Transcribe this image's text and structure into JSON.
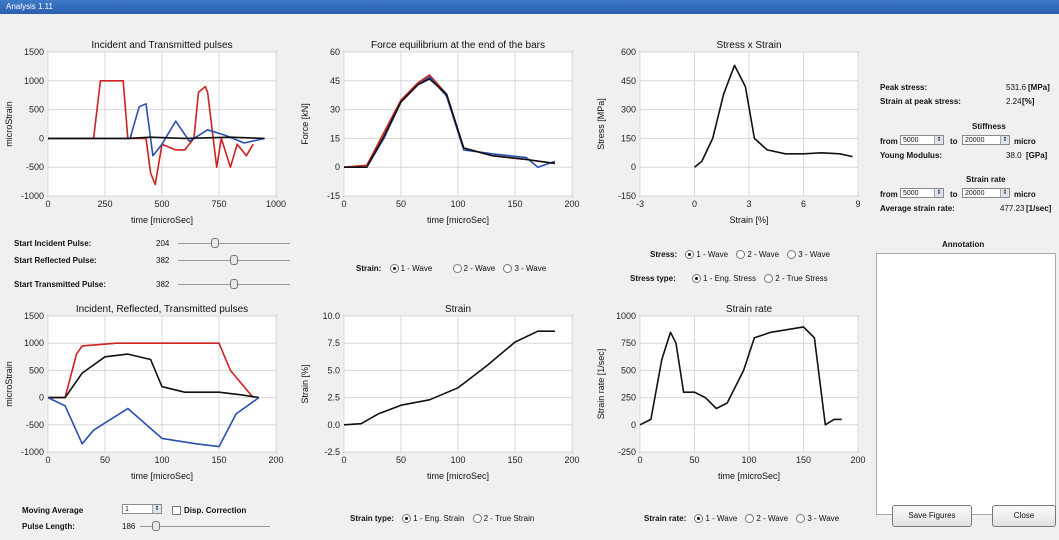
{
  "window": {
    "title": "Analysis 1.11"
  },
  "charts": {
    "incident_transmitted": {
      "title": "Incident and Transmitted pulses",
      "xlabel": "time [microSec]",
      "ylabel": "microStrain",
      "xticks": [
        "0",
        "250",
        "500",
        "750",
        "1000"
      ],
      "yticks": [
        "1500",
        "1000",
        "500",
        "0",
        "-500",
        "-1000"
      ]
    },
    "force": {
      "title": "Force equilibrium at the end of the bars",
      "xlabel": "time [microSec]",
      "ylabel": "Force [kN]",
      "xticks": [
        "0",
        "50",
        "100",
        "150",
        "200"
      ],
      "yticks": [
        "60",
        "45",
        "30",
        "15",
        "0",
        "-15"
      ]
    },
    "stress_strain": {
      "title": "Stress x Strain",
      "xlabel": "Strain [%]",
      "ylabel": "Stress [MPa]",
      "xticks": [
        "-3",
        "0",
        "3",
        "6",
        "9"
      ],
      "yticks": [
        "600",
        "450",
        "300",
        "150",
        "0",
        "-150"
      ]
    },
    "irt": {
      "title": "Incident, Reflected, Transmitted pulses",
      "xlabel": "time [microSec]",
      "ylabel": "microStrain",
      "xticks": [
        "0",
        "50",
        "100",
        "150",
        "200"
      ],
      "yticks": [
        "1500",
        "1000",
        "500",
        "0",
        "-500",
        "-1000"
      ]
    },
    "strain": {
      "title": "Strain",
      "xlabel": "time [microSec]",
      "ylabel": "Strain [%]",
      "xticks": [
        "0",
        "50",
        "100",
        "150",
        "200"
      ],
      "yticks": [
        "10.0",
        "7.5",
        "5.0",
        "2.5",
        "0.0",
        "-2.5"
      ]
    },
    "strain_rate": {
      "title": "Strain rate",
      "xlabel": "time [microSec]",
      "ylabel": "Strain rate [1/sec]",
      "xticks": [
        "0",
        "50",
        "100",
        "150",
        "200"
      ],
      "yticks": [
        "1000",
        "750",
        "500",
        "250",
        "0",
        "-250"
      ]
    }
  },
  "chart_data": [
    {
      "type": "line",
      "title": "Incident and Transmitted pulses",
      "xlabel": "time [microSec]",
      "ylabel": "microStrain",
      "xlim": [
        0,
        1000
      ],
      "ylim": [
        -1000,
        1500
      ],
      "colors": [
        "#cc2222",
        "#2a4fb0",
        "#111111"
      ],
      "series": [
        {
          "x": [
            0,
            200,
            230,
            330,
            350,
            430,
            450,
            470,
            500,
            560,
            600,
            640,
            660,
            690,
            700,
            740,
            760,
            800,
            830,
            870,
            900
          ],
          "values": [
            0,
            0,
            1000,
            1000,
            0,
            0,
            -600,
            -800,
            -100,
            -200,
            -200,
            0,
            800,
            900,
            800,
            -500,
            0,
            -500,
            -100,
            -300,
            -100
          ]
        },
        {
          "x": [
            0,
            360,
            400,
            430,
            460,
            500,
            560,
            620,
            700,
            780,
            860,
            950
          ],
          "values": [
            0,
            0,
            550,
            600,
            -300,
            -100,
            300,
            -50,
            150,
            50,
            -80,
            0
          ]
        },
        {
          "x": [
            0,
            300,
            350,
            450,
            600,
            800,
            950
          ],
          "values": [
            0,
            0,
            0,
            20,
            0,
            20,
            0
          ]
        }
      ]
    },
    {
      "type": "line",
      "title": "Force equilibrium at the end of the bars",
      "xlabel": "time [microSec]",
      "ylabel": "Force [kN]",
      "xlim": [
        0,
        200
      ],
      "ylim": [
        -15,
        60
      ],
      "colors": [
        "#cc2222",
        "#2a4fb0",
        "#111111"
      ],
      "series": [
        {
          "x": [
            0,
            20,
            35,
            50,
            65,
            75,
            90,
            105,
            130,
            160,
            185
          ],
          "values": [
            0,
            1,
            18,
            35,
            44,
            48,
            38,
            10,
            6,
            4,
            2
          ]
        },
        {
          "x": [
            0,
            20,
            35,
            50,
            65,
            75,
            90,
            105,
            130,
            160,
            170,
            185
          ],
          "values": [
            0,
            0,
            15,
            34,
            43,
            47,
            37,
            9,
            7,
            5,
            0,
            3
          ]
        },
        {
          "x": [
            0,
            20,
            35,
            50,
            65,
            75,
            90,
            105,
            130,
            160,
            185
          ],
          "values": [
            0,
            0,
            16,
            34,
            43,
            46,
            38,
            10,
            6,
            4,
            2
          ]
        }
      ]
    },
    {
      "type": "line",
      "title": "Stress x Strain",
      "xlabel": "Strain [%]",
      "ylabel": "Stress [MPa]",
      "xlim": [
        -3,
        9
      ],
      "ylim": [
        -150,
        600
      ],
      "colors": [
        "#111111"
      ],
      "series": [
        {
          "x": [
            0,
            0.4,
            1,
            1.6,
            2.2,
            2.8,
            3.3,
            4,
            5,
            6,
            7,
            8,
            8.7
          ],
          "values": [
            0,
            30,
            150,
            380,
            530,
            420,
            150,
            90,
            70,
            70,
            75,
            70,
            55
          ]
        }
      ]
    },
    {
      "type": "line",
      "title": "Incident, Reflected, Transmitted pulses",
      "xlabel": "time [microSec]",
      "ylabel": "microStrain",
      "xlim": [
        0,
        200
      ],
      "ylim": [
        -1000,
        1500
      ],
      "colors": [
        "#cc2222",
        "#111111",
        "#2a4fb0"
      ],
      "series": [
        {
          "x": [
            0,
            15,
            25,
            30,
            60,
            100,
            150,
            160,
            180
          ],
          "values": [
            0,
            0,
            800,
            950,
            1000,
            1000,
            1000,
            500,
            0
          ]
        },
        {
          "x": [
            0,
            15,
            30,
            50,
            70,
            90,
            100,
            120,
            150,
            170,
            185
          ],
          "values": [
            0,
            0,
            450,
            750,
            800,
            700,
            200,
            100,
            100,
            50,
            0
          ]
        },
        {
          "x": [
            0,
            15,
            30,
            40,
            70,
            100,
            130,
            150,
            165,
            185
          ],
          "values": [
            0,
            -150,
            -850,
            -600,
            -200,
            -750,
            -850,
            -900,
            -300,
            0
          ]
        }
      ]
    },
    {
      "type": "line",
      "title": "Strain",
      "xlabel": "time [microSec]",
      "ylabel": "Strain [%]",
      "xlim": [
        0,
        200
      ],
      "ylim": [
        -2.5,
        10
      ],
      "colors": [
        "#111111"
      ],
      "series": [
        {
          "x": [
            0,
            15,
            30,
            50,
            75,
            100,
            125,
            150,
            170,
            185
          ],
          "values": [
            0,
            0.1,
            1,
            1.8,
            2.3,
            3.4,
            5.4,
            7.6,
            8.6,
            8.6
          ]
        }
      ]
    },
    {
      "type": "line",
      "title": "Strain rate",
      "xlabel": "time [microSec]",
      "ylabel": "Strain rate [1/sec]",
      "xlim": [
        0,
        200
      ],
      "ylim": [
        -250,
        1000
      ],
      "colors": [
        "#111111"
      ],
      "series": [
        {
          "x": [
            0,
            10,
            20,
            28,
            33,
            40,
            50,
            60,
            70,
            80,
            95,
            105,
            120,
            150,
            160,
            170,
            178,
            185
          ],
          "values": [
            0,
            50,
            600,
            850,
            750,
            300,
            300,
            250,
            150,
            200,
            500,
            800,
            850,
            900,
            800,
            0,
            50,
            50
          ]
        }
      ]
    }
  ],
  "right_panel": {
    "peak_stress_label": "Peak stress:",
    "peak_stress_value": "531.6",
    "peak_stress_unit": "[MPa]",
    "strain_peak_label": "Strain at peak stress:",
    "strain_peak_value": "2.24",
    "strain_peak_unit": "[%]",
    "stiffness_title": "Stiffness",
    "from_label": "from",
    "stiff_from": "5000",
    "to_label": "to",
    "stiff_to": "20000",
    "micro_label": "micro",
    "young_label": "Young Modulus:",
    "young_value": "38.0",
    "young_unit": "[GPa]",
    "strain_rate_title": "Strain rate",
    "rate_from": "5000",
    "rate_to": "20000",
    "avg_rate_label": "Average strain rate:",
    "avg_rate_value": "477.23",
    "avg_rate_unit": "[1/sec]",
    "annotation_title": "Annotation"
  },
  "sliders": {
    "incident_label": "Start Incident Pulse:",
    "incident_value": "204",
    "incident_pos": 0.32,
    "reflected_label": "Start Reflected Pulse:",
    "reflected_value": "382",
    "reflected_pos": 0.5,
    "transmitted_label": "Start Transmitted Pulse:",
    "transmitted_value": "382",
    "transmitted_pos": 0.5
  },
  "radios": {
    "strain_label": "Strain:",
    "stress_label": "Stress:",
    "stress_type_label": "Stress type:",
    "strain_type_label": "Strain type:",
    "strain_rate_label": "Strain rate:",
    "wave1": "1 - Wave",
    "wave2": "2 - Wave",
    "wave3": "3 - Wave",
    "eng_stress": "1 - Eng. Stress",
    "true_stress": "2 - True Stress",
    "eng_strain": "1 - Eng. Strain",
    "true_strain": "2 - True Strain"
  },
  "bottom": {
    "moving_avg_label": "Moving Average",
    "moving_avg_value": "1",
    "disp_corr_label": "Disp. Correction",
    "pulse_length_label": "Pulse Length:",
    "pulse_length_value": "186",
    "pulse_length_pos": 0.1,
    "save_label": "Save Figures",
    "close_label": "Close"
  }
}
